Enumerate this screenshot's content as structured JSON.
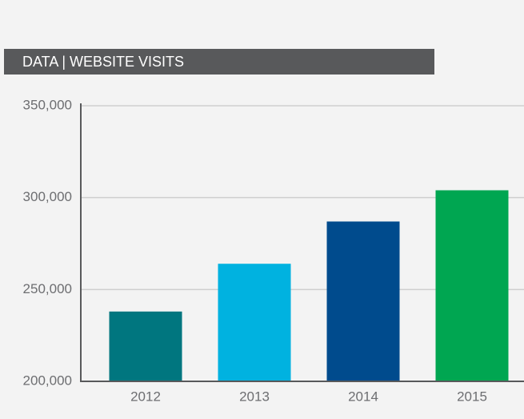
{
  "chart_data": {
    "type": "bar",
    "title": "DATA | WEBSITE VISITS",
    "categories": [
      "2012",
      "2013",
      "2014",
      "2015"
    ],
    "values": [
      238000,
      264000,
      287000,
      304000
    ],
    "colors": [
      "#00767f",
      "#00b2e0",
      "#004b8d",
      "#00a651"
    ],
    "ylim": [
      200000,
      350000
    ],
    "yticks": [
      {
        "value": 200000,
        "label": "200,000"
      },
      {
        "value": 250000,
        "label": "250,000"
      },
      {
        "value": 300000,
        "label": "300,000"
      },
      {
        "value": 350000,
        "label": "350,000"
      }
    ],
    "grid": true
  }
}
